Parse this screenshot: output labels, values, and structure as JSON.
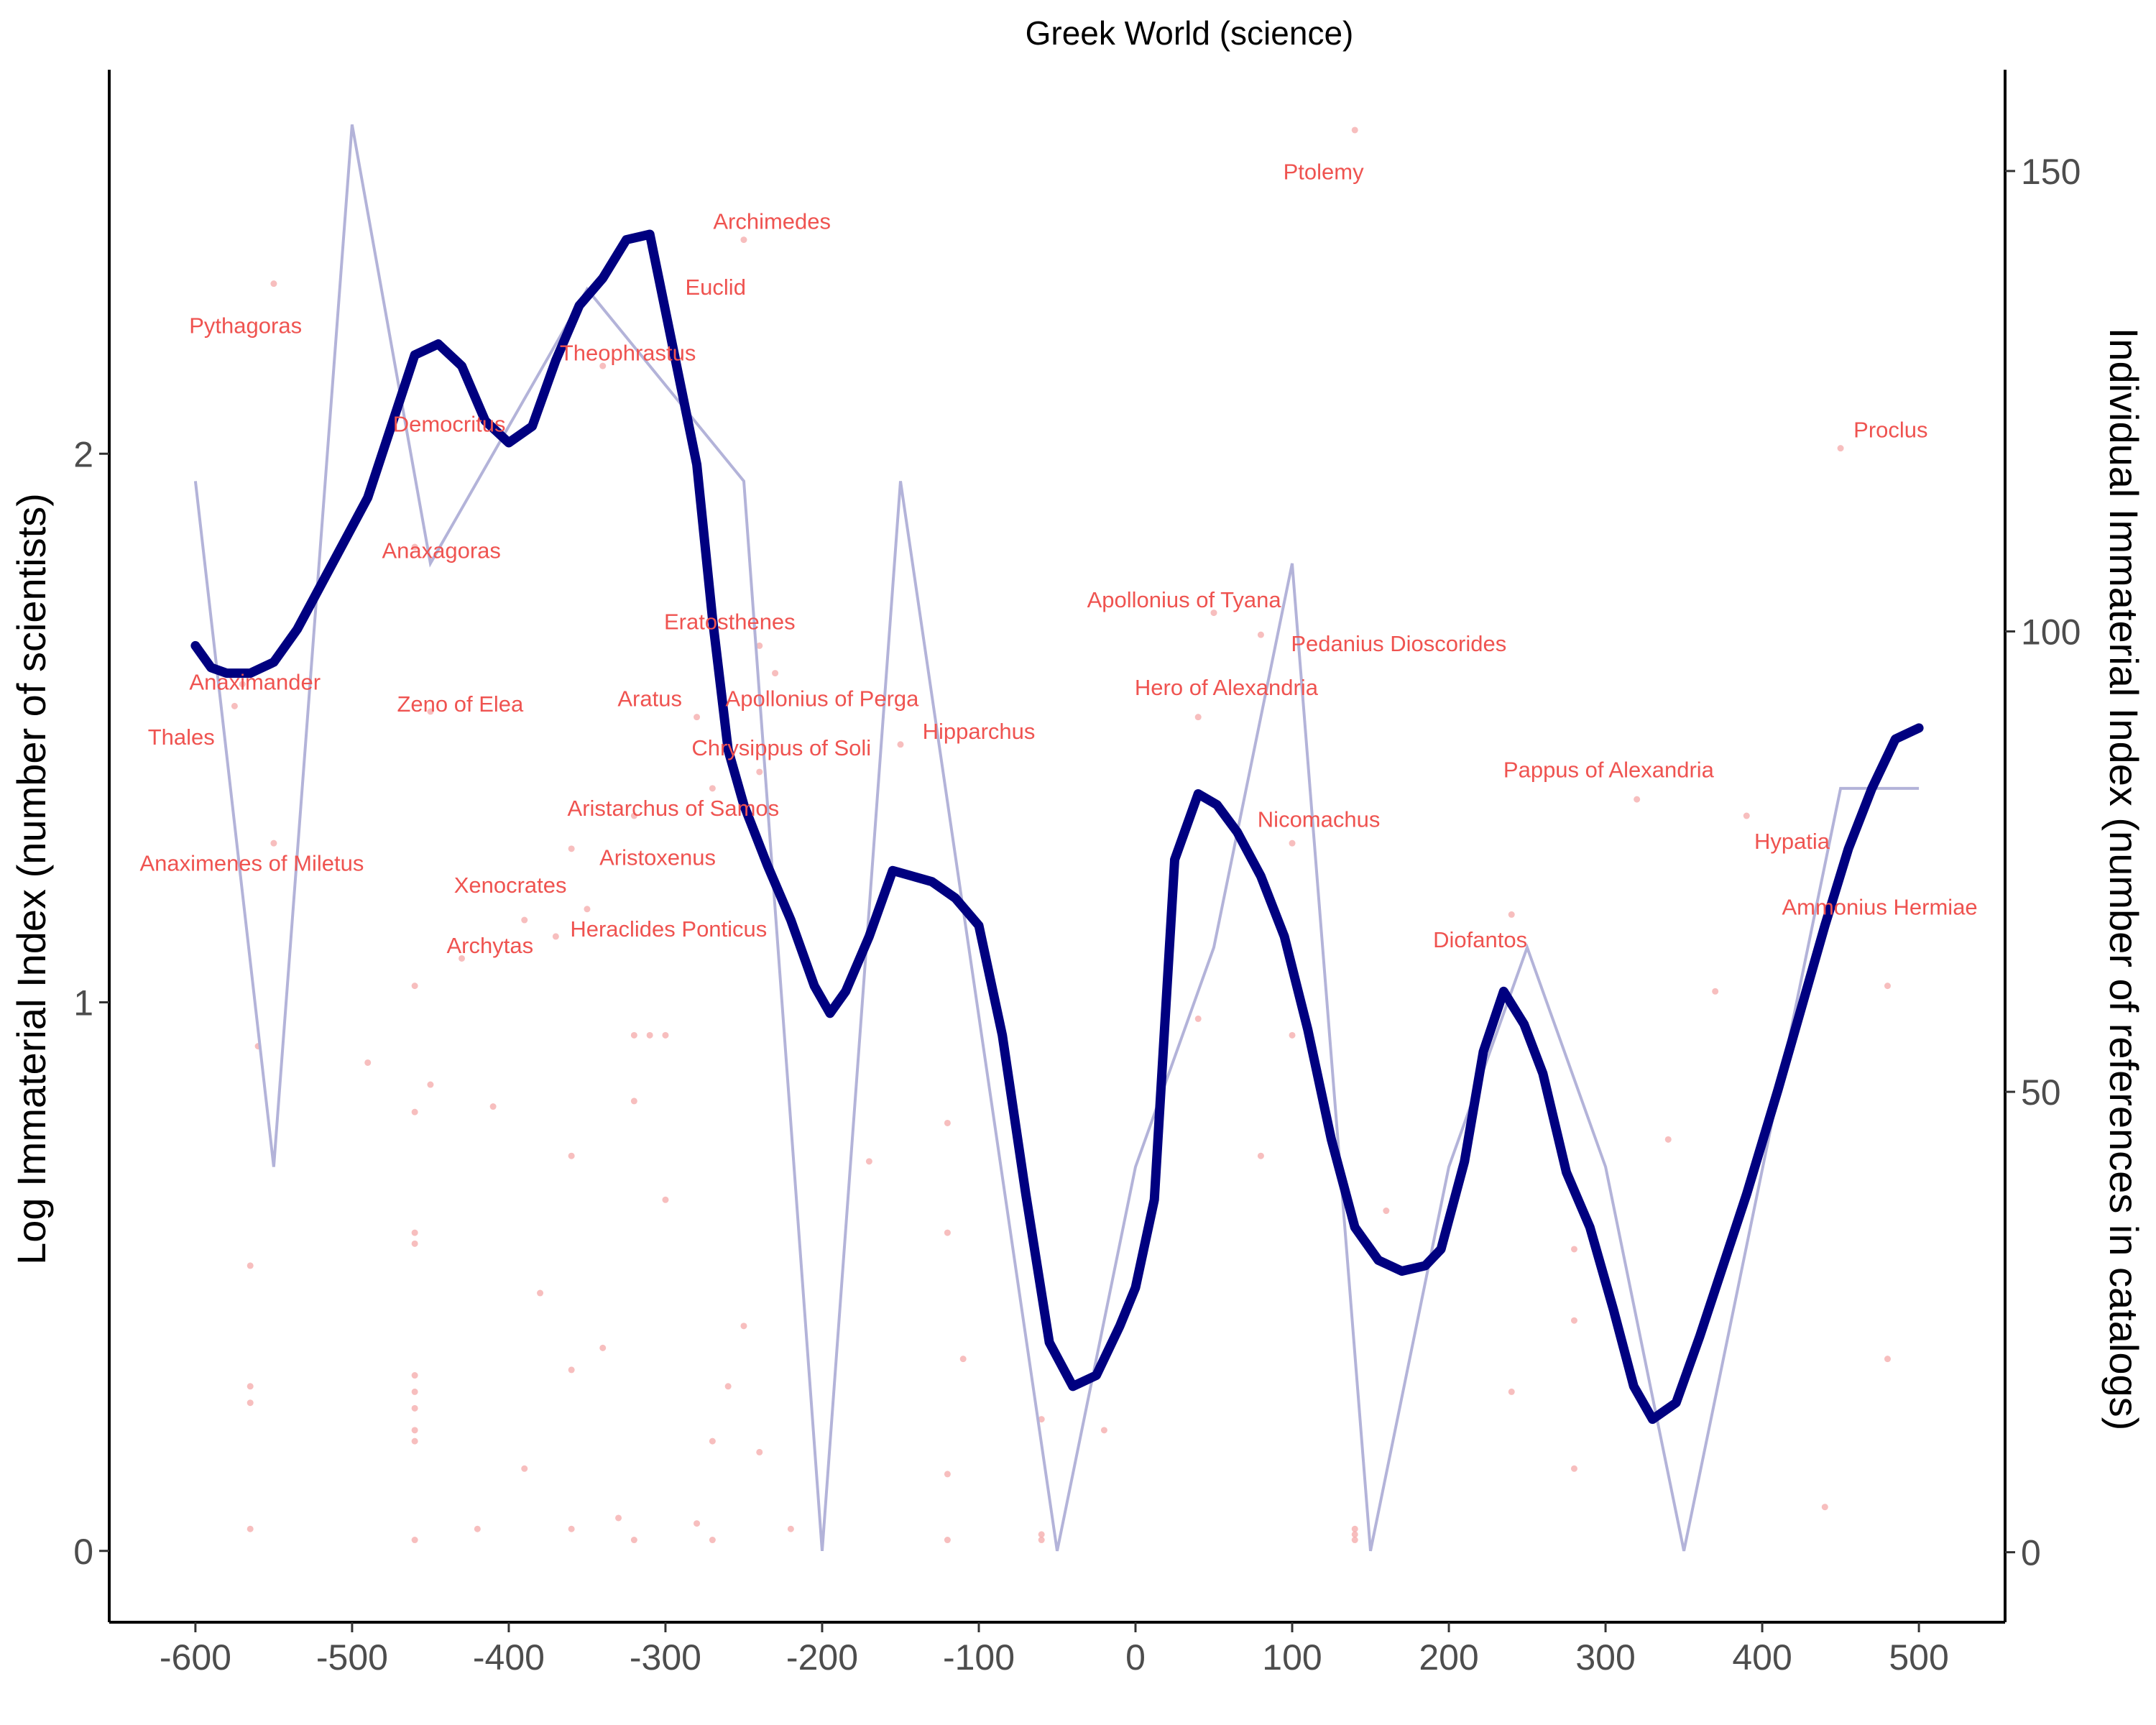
{
  "chart_data": {
    "type": "line",
    "title": "Greek World (science)",
    "xlabel": "",
    "ylabel": "Log Immaterial Index (number of scientists)",
    "y2label": "Individual Immaterial Index (number of references in catalogs)",
    "xlim": [
      -655,
      555
    ],
    "ylim": [
      -0.13,
      2.7
    ],
    "y2lim": [
      -7.6,
      161
    ],
    "x_ticks": [
      "-600",
      "-500",
      "-400",
      "-300",
      "-200",
      "-100",
      "0",
      "100",
      "200",
      "300",
      "400",
      "500"
    ],
    "x_tick_values": [
      -600,
      -500,
      -400,
      -300,
      -200,
      -100,
      0,
      100,
      200,
      300,
      400,
      500
    ],
    "y_ticks": [
      "0",
      "1",
      "2"
    ],
    "y_tick_values": [
      0,
      1,
      2
    ],
    "y2_ticks": [
      "0",
      "50",
      "100",
      "150"
    ],
    "y2_tick_values": [
      0,
      50,
      100,
      150
    ],
    "grid": false,
    "colors": {
      "smooth": "#000080",
      "raw": "#b3b3d9",
      "labels": "#ef5350",
      "points": "#f4a8a8"
    },
    "series": [
      {
        "role": "raw",
        "axis": "left",
        "x": [
          -600,
          -550,
          -500,
          -450,
          -350,
          -250,
          -200,
          -150,
          -50,
          0,
          50,
          100,
          150,
          200,
          250,
          300,
          350,
          450,
          500
        ],
        "y": [
          1.95,
          0.7,
          2.6,
          1.8,
          2.3,
          1.95,
          0.0,
          1.95,
          0.0,
          0.7,
          1.1,
          1.8,
          0.0,
          0.7,
          1.1,
          0.7,
          0.0,
          1.39,
          1.39
        ]
      },
      {
        "role": "smooth",
        "axis": "left",
        "x": [
          -600,
          -590,
          -580,
          -565,
          -550,
          -535,
          -520,
          -505,
          -490,
          -475,
          -460,
          -445,
          -430,
          -415,
          -400,
          -385,
          -370,
          -355,
          -340,
          -325,
          -310,
          -300,
          -290,
          -280,
          -270,
          -260,
          -250,
          -235,
          -220,
          -205,
          -195,
          -185,
          -170,
          -155,
          -130,
          -115,
          -100,
          -85,
          -70,
          -55,
          -40,
          -25,
          -10,
          0,
          12,
          25,
          40,
          52,
          65,
          80,
          95,
          110,
          125,
          140,
          155,
          170,
          185,
          195,
          210,
          222,
          235,
          248,
          260,
          275,
          290,
          305,
          318,
          330,
          345,
          360,
          375,
          390,
          410,
          425,
          440,
          455,
          470,
          485,
          500
        ],
        "y": [
          1.65,
          1.61,
          1.6,
          1.6,
          1.62,
          1.68,
          1.76,
          1.84,
          1.92,
          2.05,
          2.18,
          2.2,
          2.16,
          2.06,
          2.02,
          2.05,
          2.17,
          2.27,
          2.32,
          2.39,
          2.4,
          2.26,
          2.12,
          1.98,
          1.7,
          1.46,
          1.36,
          1.25,
          1.15,
          1.03,
          0.98,
          1.02,
          1.12,
          1.24,
          1.22,
          1.19,
          1.14,
          0.94,
          0.65,
          0.38,
          0.3,
          0.32,
          0.41,
          0.48,
          0.64,
          1.26,
          1.38,
          1.36,
          1.31,
          1.23,
          1.12,
          0.95,
          0.75,
          0.59,
          0.53,
          0.51,
          0.52,
          0.55,
          0.71,
          0.91,
          1.02,
          0.96,
          0.87,
          0.69,
          0.59,
          0.44,
          0.3,
          0.24,
          0.27,
          0.39,
          0.52,
          0.65,
          0.84,
          0.99,
          1.14,
          1.28,
          1.39,
          1.48,
          1.5
        ]
      }
    ],
    "points": [
      {
        "x": -575,
        "y": 1.54
      },
      {
        "x": -570,
        "y": 1.58
      },
      {
        "x": -560,
        "y": 0.92
      },
      {
        "x": -565,
        "y": 0.52
      },
      {
        "x": -565,
        "y": 0.3
      },
      {
        "x": -565,
        "y": 0.27
      },
      {
        "x": -565,
        "y": 0.04
      },
      {
        "x": -550,
        "y": 1.29
      },
      {
        "x": -550,
        "y": 2.31
      },
      {
        "x": -490,
        "y": 0.89
      },
      {
        "x": -460,
        "y": 1.83
      },
      {
        "x": -460,
        "y": 1.03
      },
      {
        "x": -460,
        "y": 0.8
      },
      {
        "x": -460,
        "y": 0.58
      },
      {
        "x": -460,
        "y": 0.56
      },
      {
        "x": -460,
        "y": 0.32
      },
      {
        "x": -460,
        "y": 0.29
      },
      {
        "x": -460,
        "y": 0.26
      },
      {
        "x": -460,
        "y": 0.22
      },
      {
        "x": -460,
        "y": 0.2
      },
      {
        "x": -460,
        "y": 0.02
      },
      {
        "x": -450,
        "y": 1.53
      },
      {
        "x": -450,
        "y": 0.85
      },
      {
        "x": -430,
        "y": 1.08
      },
      {
        "x": -420,
        "y": 0.04
      },
      {
        "x": -410,
        "y": 0.81
      },
      {
        "x": -390,
        "y": 1.15
      },
      {
        "x": -390,
        "y": 0.15
      },
      {
        "x": -380,
        "y": 0.47
      },
      {
        "x": -370,
        "y": 1.12
      },
      {
        "x": -360,
        "y": 1.28
      },
      {
        "x": -360,
        "y": 0.72
      },
      {
        "x": -360,
        "y": 0.33
      },
      {
        "x": -360,
        "y": 0.04
      },
      {
        "x": -350,
        "y": 1.17
      },
      {
        "x": -340,
        "y": 2.16
      },
      {
        "x": -340,
        "y": 0.37
      },
      {
        "x": -330,
        "y": 0.06
      },
      {
        "x": -320,
        "y": 1.34
      },
      {
        "x": -320,
        "y": 0.94
      },
      {
        "x": -320,
        "y": 0.82
      },
      {
        "x": -320,
        "y": 0.02
      },
      {
        "x": -310,
        "y": 0.94
      },
      {
        "x": -300,
        "y": 0.94
      },
      {
        "x": -300,
        "y": 0.64
      },
      {
        "x": -280,
        "y": 1.52
      },
      {
        "x": -280,
        "y": 0.05
      },
      {
        "x": -270,
        "y": 1.39
      },
      {
        "x": -270,
        "y": 0.2
      },
      {
        "x": -270,
        "y": 0.02
      },
      {
        "x": -260,
        "y": 0.3
      },
      {
        "x": -250,
        "y": 2.39
      },
      {
        "x": -250,
        "y": 0.41
      },
      {
        "x": -240,
        "y": 1.65
      },
      {
        "x": -240,
        "y": 1.42
      },
      {
        "x": -240,
        "y": 0.18
      },
      {
        "x": -230,
        "y": 1.6
      },
      {
        "x": -220,
        "y": 0.04
      },
      {
        "x": -170,
        "y": 0.71
      },
      {
        "x": -150,
        "y": 1.47
      },
      {
        "x": -120,
        "y": 0.78
      },
      {
        "x": -120,
        "y": 0.58
      },
      {
        "x": -120,
        "y": 0.14
      },
      {
        "x": -120,
        "y": 0.02
      },
      {
        "x": -110,
        "y": 0.35
      },
      {
        "x": -60,
        "y": 0.24
      },
      {
        "x": -60,
        "y": 0.03
      },
      {
        "x": -60,
        "y": 0.02
      },
      {
        "x": -20,
        "y": 0.22
      },
      {
        "x": 40,
        "y": 1.52
      },
      {
        "x": 40,
        "y": 0.97
      },
      {
        "x": 50,
        "y": 1.71
      },
      {
        "x": 80,
        "y": 1.67
      },
      {
        "x": 80,
        "y": 0.72
      },
      {
        "x": 100,
        "y": 1.29
      },
      {
        "x": 100,
        "y": 0.94
      },
      {
        "x": 140,
        "y": 2.59
      },
      {
        "x": 140,
        "y": 0.04
      },
      {
        "x": 140,
        "y": 0.03
      },
      {
        "x": 140,
        "y": 0.02
      },
      {
        "x": 160,
        "y": 0.62
      },
      {
        "x": 240,
        "y": 1.16
      },
      {
        "x": 240,
        "y": 0.29
      },
      {
        "x": 280,
        "y": 0.55
      },
      {
        "x": 280,
        "y": 0.42
      },
      {
        "x": 280,
        "y": 0.15
      },
      {
        "x": 320,
        "y": 1.37
      },
      {
        "x": 340,
        "y": 0.75
      },
      {
        "x": 370,
        "y": 1.02
      },
      {
        "x": 390,
        "y": 1.34
      },
      {
        "x": 440,
        "y": 0.08
      },
      {
        "x": 450,
        "y": 2.01
      },
      {
        "x": 480,
        "y": 1.03
      },
      {
        "x": 480,
        "y": 0.35
      }
    ],
    "annotations": [
      {
        "text": "Ptolemy",
        "x": 120,
        "y": 2.5
      },
      {
        "text": "Archimedes",
        "x": -232,
        "y": 2.41
      },
      {
        "text": "Euclid",
        "x": -268,
        "y": 2.29
      },
      {
        "text": "Pythagoras",
        "x": -568,
        "y": 2.22
      },
      {
        "text": "Theophrastus",
        "x": -324,
        "y": 2.17
      },
      {
        "text": "Proclus",
        "x": 482,
        "y": 2.03
      },
      {
        "text": "Democritus",
        "x": -438,
        "y": 2.04
      },
      {
        "text": "Anaxagoras",
        "x": -443,
        "y": 1.81
      },
      {
        "text": "Apollonius of Tyana",
        "x": 31,
        "y": 1.72
      },
      {
        "text": "Eratosthenes",
        "x": -259,
        "y": 1.68
      },
      {
        "text": "Pedanius Dioscorides",
        "x": 168,
        "y": 1.64
      },
      {
        "text": "Anaximander",
        "x": -562,
        "y": 1.57
      },
      {
        "text": "Hero of Alexandria",
        "x": 58,
        "y": 1.56
      },
      {
        "text": "Aratus",
        "x": -310,
        "y": 1.54
      },
      {
        "text": "Apollonius of Perga",
        "x": -200,
        "y": 1.54
      },
      {
        "text": "Zeno of Elea",
        "x": -431,
        "y": 1.53
      },
      {
        "text": "Thales",
        "x": -609,
        "y": 1.47
      },
      {
        "text": "Hipparchus",
        "x": -100,
        "y": 1.48
      },
      {
        "text": "Chrysippus of Soli",
        "x": -226,
        "y": 1.45
      },
      {
        "text": "Pappus of Alexandria",
        "x": 302,
        "y": 1.41
      },
      {
        "text": "Aristarchus of Samos",
        "x": -295,
        "y": 1.34
      },
      {
        "text": "Nicomachus",
        "x": 117,
        "y": 1.32
      },
      {
        "text": "Hypatia",
        "x": 419,
        "y": 1.28
      },
      {
        "text": "Anaximenes of Miletus",
        "x": -564,
        "y": 1.24
      },
      {
        "text": "Aristoxenus",
        "x": -305,
        "y": 1.25
      },
      {
        "text": "Xenocrates",
        "x": -399,
        "y": 1.2
      },
      {
        "text": "Ammonius Hermiae",
        "x": 475,
        "y": 1.16
      },
      {
        "text": "Archytas",
        "x": -412,
        "y": 1.09
      },
      {
        "text": "Heraclides Ponticus",
        "x": -298,
        "y": 1.12
      },
      {
        "text": "Diofantos",
        "x": 220,
        "y": 1.1
      }
    ]
  }
}
